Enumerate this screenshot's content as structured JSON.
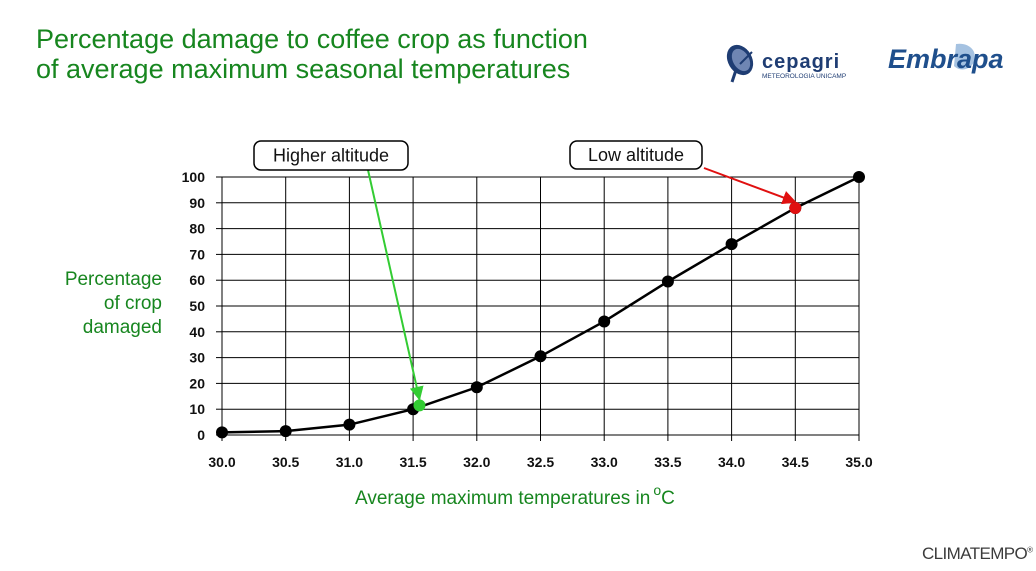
{
  "title": {
    "line1": "Percentage damage to coffee crop as function",
    "line2": "of average maximum seasonal temperatures"
  },
  "logos": {
    "cepagri": {
      "name": "cepagri",
      "subtitle": "METEOROLOGIA UNICAMP"
    },
    "embrapa": {
      "name": "Embrapa"
    }
  },
  "footer": {
    "brand": "CLIMATEMPO",
    "mark": "®"
  },
  "colors": {
    "title_green": "#17861f",
    "line": "#000000",
    "highlight_green": "#33cc33",
    "highlight_red": "#e01010"
  },
  "chart_data": {
    "type": "line",
    "ylabel_lines": [
      "Percentage",
      "of crop",
      "damaged"
    ],
    "xlabel": "Average maximum temperatures in",
    "xlabel_unit_sup": "o",
    "xlabel_unit": "C",
    "x_ticks": [
      "30.0",
      "30.5",
      "31.0",
      "31.5",
      "32.0",
      "32.5",
      "33.0",
      "33.5",
      "34.0",
      "34.5",
      "35.0"
    ],
    "y_ticks": [
      "0",
      "10",
      "20",
      "30",
      "40",
      "50",
      "60",
      "70",
      "80",
      "90",
      "100"
    ],
    "xlim": [
      30.0,
      35.0
    ],
    "ylim": [
      0,
      100
    ],
    "grid": true,
    "series": [
      {
        "x": [
          30.0,
          30.5,
          31.0,
          31.5,
          32.0,
          32.5,
          33.0,
          33.5,
          34.0,
          34.5,
          35.0
        ],
        "y": [
          1,
          1.5,
          4,
          10,
          18.5,
          30.5,
          44,
          59.5,
          74,
          88,
          100
        ]
      }
    ],
    "highlights": [
      {
        "label": "Higher altitude",
        "x": 31.55,
        "y": 11.5,
        "color": "#33cc33"
      },
      {
        "label": "Low altitude",
        "x": 34.5,
        "y": 88,
        "color": "#e01010"
      }
    ]
  }
}
